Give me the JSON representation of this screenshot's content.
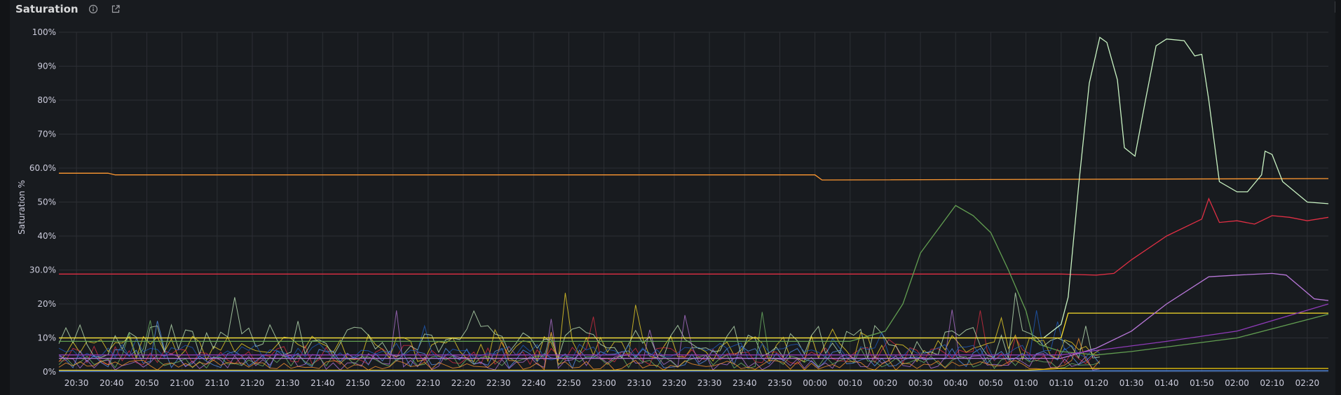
{
  "panel": {
    "title": "Saturation",
    "info_icon": "info-circle-icon",
    "link_icon": "external-link-icon"
  },
  "colors": {
    "background": "#181b1f",
    "grid": "#2c2f34",
    "text": "#ccccdc"
  },
  "chart_data": {
    "type": "line",
    "ylabel": "Saturation %",
    "xlabel": "",
    "ylim": [
      0,
      100
    ],
    "grid": true,
    "legend": "none",
    "x_range": [
      "20:25",
      "02:26"
    ],
    "y_ticks": [
      "0%",
      "10%",
      "20%",
      "30.0%",
      "40%",
      "50%",
      "60.0%",
      "70%",
      "80%",
      "90%",
      "100%"
    ],
    "y_tick_values": [
      0,
      10,
      20,
      30,
      40,
      50,
      60,
      70,
      80,
      90,
      100
    ],
    "x_ticks": [
      "20:30",
      "20:40",
      "20:50",
      "21:00",
      "21:10",
      "21:20",
      "21:30",
      "21:40",
      "21:50",
      "22:00",
      "22:10",
      "22:20",
      "22:30",
      "22:40",
      "22:50",
      "23:00",
      "23:10",
      "23:20",
      "23:30",
      "23:40",
      "23:50",
      "00:00",
      "00:10",
      "00:20",
      "00:30",
      "00:40",
      "00:50",
      "01:00",
      "01:10",
      "01:20",
      "01:30",
      "01:40",
      "01:50",
      "02:00",
      "02:10",
      "02:20"
    ],
    "series": [
      {
        "color": "#ff9830",
        "x": [
          "20:25",
          "20:39",
          "20:41",
          "00:00",
          "00:02",
          "02:26"
        ],
        "y": [
          58.5,
          58.5,
          58.0,
          58.0,
          56.5,
          56.9
        ]
      },
      {
        "color": "#e02f44",
        "x": [
          "20:25",
          "01:10",
          "01:20",
          "01:25",
          "01:30",
          "01:40",
          "01:50",
          "01:52",
          "01:55",
          "02:00",
          "02:05",
          "02:10",
          "02:15",
          "02:20",
          "02:26"
        ],
        "y": [
          28.8,
          28.8,
          28.5,
          29.0,
          33.0,
          40.0,
          45.0,
          51.0,
          44.0,
          44.5,
          43.5,
          46.0,
          45.5,
          44.5,
          45.5
        ]
      },
      {
        "color": "#c8f2c2",
        "x": [
          "20:25",
          "01:05",
          "01:10",
          "01:12",
          "01:15",
          "01:18",
          "01:21",
          "01:23",
          "01:26",
          "01:28",
          "01:31",
          "01:34",
          "01:37",
          "01:40",
          "01:45",
          "01:48",
          "01:50",
          "01:52",
          "01:55",
          "02:00",
          "02:03",
          "02:07",
          "02:08",
          "02:10",
          "02:13",
          "02:20",
          "02:26"
        ],
        "y": [
          10,
          10,
          14,
          22,
          55,
          85,
          98.5,
          97,
          86,
          66,
          63.5,
          80,
          96,
          98,
          97.5,
          93,
          93.5,
          80,
          56,
          53,
          53,
          58,
          65,
          64,
          56,
          50,
          49.5
        ]
      },
      {
        "color": "#629e51",
        "x": [
          "20:25",
          "00:10",
          "00:20",
          "00:25",
          "00:30",
          "00:35",
          "00:40",
          "00:45",
          "00:50",
          "00:55",
          "01:00",
          "01:02",
          "01:04",
          "01:10",
          "01:20",
          "01:30",
          "02:00",
          "02:26"
        ],
        "y": [
          9,
          9,
          12,
          20,
          35,
          42,
          49,
          46,
          41,
          30,
          18,
          10,
          8,
          6,
          5,
          6,
          10,
          17
        ]
      },
      {
        "color": "#fade2a",
        "x": [
          "20:25",
          "01:10",
          "01:12",
          "02:26"
        ],
        "y": [
          10,
          10,
          17.3,
          17.3
        ]
      },
      {
        "color": "#b877d9",
        "x": [
          "20:25",
          "01:10",
          "01:20",
          "01:30",
          "01:40",
          "01:52",
          "02:00",
          "02:10",
          "02:14",
          "02:18",
          "02:22",
          "02:26"
        ],
        "y": [
          4,
          4,
          7,
          12,
          20,
          28,
          28.5,
          29,
          28.5,
          25,
          21.5,
          21
        ]
      },
      {
        "color": "#8f3bb8",
        "x": [
          "20:25",
          "01:10",
          "01:40",
          "02:00",
          "02:26"
        ],
        "y": [
          5,
          5,
          9,
          12,
          20
        ]
      },
      {
        "color": "#f2cc0c",
        "x": [
          "20:25",
          "01:00",
          "01:10",
          "02:26"
        ],
        "y": [
          0.5,
          0.5,
          1,
          1
        ]
      },
      {
        "color": "#5794f2",
        "x": [
          "20:25",
          "02:26"
        ],
        "y": [
          0.2,
          0.3
        ]
      }
    ]
  }
}
